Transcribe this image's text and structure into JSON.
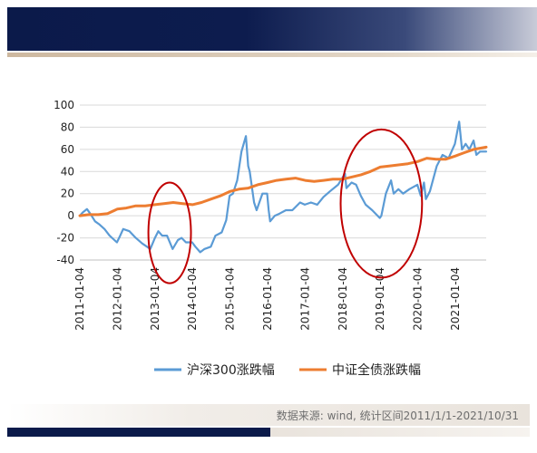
{
  "chart_data": {
    "type": "line",
    "title": "",
    "xlabel": "",
    "ylabel": "",
    "ylim": [
      -40,
      100
    ],
    "yticks": [
      100,
      80,
      60,
      40,
      20,
      0,
      -20,
      -40
    ],
    "xticks": [
      "2011-01-04",
      "2012-01-04",
      "2013-01-04",
      "2014-01-04",
      "2015-01-04",
      "2016-01-04",
      "2017-01-04",
      "2018-01-04",
      "2019-01-04",
      "2020-01-04",
      "2021-01-04"
    ],
    "x_start": "2011-01-04",
    "x_end": "2021-10-31",
    "grid": true,
    "legend": "bottom",
    "series": [
      {
        "name": "沪深300涨跌幅",
        "color": "#5b9bd5",
        "points": [
          [
            "2011-01-04",
            0
          ],
          [
            "2011-02-01",
            3
          ],
          [
            "2011-03-15",
            6
          ],
          [
            "2011-04-15",
            2
          ],
          [
            "2011-06-01",
            -5
          ],
          [
            "2011-07-15",
            -8
          ],
          [
            "2011-09-01",
            -12
          ],
          [
            "2011-10-20",
            -18
          ],
          [
            "2011-12-31",
            -24
          ],
          [
            "2012-02-01",
            -18
          ],
          [
            "2012-03-01",
            -12
          ],
          [
            "2012-05-01",
            -14
          ],
          [
            "2012-07-01",
            -20
          ],
          [
            "2012-09-01",
            -25
          ],
          [
            "2012-11-20",
            -30
          ],
          [
            "2013-01-04",
            -20
          ],
          [
            "2013-02-05",
            -14
          ],
          [
            "2013-03-15",
            -18
          ],
          [
            "2013-05-01",
            -18
          ],
          [
            "2013-06-25",
            -30
          ],
          [
            "2013-08-15",
            -22
          ],
          [
            "2013-09-20",
            -20
          ],
          [
            "2013-11-01",
            -24
          ],
          [
            "2013-12-31",
            -24
          ],
          [
            "2014-02-01",
            -28
          ],
          [
            "2014-03-20",
            -33
          ],
          [
            "2014-05-01",
            -30
          ],
          [
            "2014-07-01",
            -28
          ],
          [
            "2014-08-15",
            -18
          ],
          [
            "2014-10-15",
            -15
          ],
          [
            "2014-11-28",
            -4
          ],
          [
            "2014-12-31",
            18
          ],
          [
            "2015-02-01",
            20
          ],
          [
            "2015-03-15",
            32
          ],
          [
            "2015-04-25",
            58
          ],
          [
            "2015-06-08",
            72
          ],
          [
            "2015-06-30",
            45
          ],
          [
            "2015-07-15",
            40
          ],
          [
            "2015-08-26",
            12
          ],
          [
            "2015-09-20",
            5
          ],
          [
            "2015-11-15",
            20
          ],
          [
            "2015-12-31",
            20
          ],
          [
            "2016-01-15",
            5
          ],
          [
            "2016-01-29",
            -5
          ],
          [
            "2016-03-15",
            0
          ],
          [
            "2016-05-01",
            2
          ],
          [
            "2016-07-01",
            5
          ],
          [
            "2016-09-01",
            5
          ],
          [
            "2016-11-15",
            12
          ],
          [
            "2016-12-31",
            10
          ],
          [
            "2017-03-01",
            12
          ],
          [
            "2017-05-01",
            10
          ],
          [
            "2017-07-01",
            17
          ],
          [
            "2017-09-01",
            22
          ],
          [
            "2017-11-20",
            28
          ],
          [
            "2018-01-26",
            38
          ],
          [
            "2018-02-09",
            25
          ],
          [
            "2018-04-01",
            30
          ],
          [
            "2018-05-15",
            28
          ],
          [
            "2018-06-30",
            18
          ],
          [
            "2018-08-15",
            10
          ],
          [
            "2018-10-18",
            5
          ],
          [
            "2018-12-31",
            -2
          ],
          [
            "2019-01-15",
            0
          ],
          [
            "2019-02-28",
            20
          ],
          [
            "2019-04-19",
            32
          ],
          [
            "2019-05-15",
            20
          ],
          [
            "2019-06-30",
            24
          ],
          [
            "2019-08-15",
            20
          ],
          [
            "2019-10-15",
            24
          ],
          [
            "2019-12-31",
            28
          ],
          [
            "2020-02-03",
            18
          ],
          [
            "2020-03-05",
            30
          ],
          [
            "2020-03-23",
            15
          ],
          [
            "2020-05-01",
            22
          ],
          [
            "2020-07-07",
            45
          ],
          [
            "2020-09-01",
            55
          ],
          [
            "2020-10-30",
            52
          ],
          [
            "2020-12-31",
            65
          ],
          [
            "2021-02-10",
            85
          ],
          [
            "2021-03-09",
            60
          ],
          [
            "2021-04-15",
            65
          ],
          [
            "2021-05-20",
            60
          ],
          [
            "2021-06-30",
            68
          ],
          [
            "2021-07-28",
            55
          ],
          [
            "2021-09-01",
            58
          ],
          [
            "2021-10-31",
            58
          ]
        ]
      },
      {
        "name": "中证全债涨跌幅",
        "color": "#ed7d31",
        "points": [
          [
            "2011-01-04",
            0
          ],
          [
            "2011-04-01",
            1
          ],
          [
            "2011-07-01",
            1
          ],
          [
            "2011-10-01",
            2
          ],
          [
            "2012-01-04",
            6
          ],
          [
            "2012-04-01",
            7
          ],
          [
            "2012-07-01",
            9
          ],
          [
            "2012-10-01",
            9
          ],
          [
            "2013-01-04",
            10
          ],
          [
            "2013-04-01",
            11
          ],
          [
            "2013-07-01",
            12
          ],
          [
            "2013-10-01",
            11
          ],
          [
            "2014-01-04",
            10
          ],
          [
            "2014-04-01",
            12
          ],
          [
            "2014-07-01",
            15
          ],
          [
            "2014-10-01",
            18
          ],
          [
            "2015-01-04",
            22
          ],
          [
            "2015-04-01",
            24
          ],
          [
            "2015-07-01",
            25
          ],
          [
            "2015-10-01",
            28
          ],
          [
            "2016-01-04",
            30
          ],
          [
            "2016-04-01",
            32
          ],
          [
            "2016-07-01",
            33
          ],
          [
            "2016-10-01",
            34
          ],
          [
            "2017-01-04",
            32
          ],
          [
            "2017-04-01",
            31
          ],
          [
            "2017-07-01",
            32
          ],
          [
            "2017-10-01",
            33
          ],
          [
            "2018-01-04",
            33
          ],
          [
            "2018-04-01",
            35
          ],
          [
            "2018-07-01",
            37
          ],
          [
            "2018-10-01",
            40
          ],
          [
            "2019-01-04",
            44
          ],
          [
            "2019-04-01",
            45
          ],
          [
            "2019-07-01",
            46
          ],
          [
            "2019-10-01",
            47
          ],
          [
            "2020-01-04",
            49
          ],
          [
            "2020-04-01",
            52
          ],
          [
            "2020-07-01",
            51
          ],
          [
            "2020-10-01",
            51
          ],
          [
            "2021-01-04",
            54
          ],
          [
            "2021-04-01",
            57
          ],
          [
            "2021-07-01",
            60
          ],
          [
            "2021-10-31",
            62
          ]
        ]
      }
    ],
    "annotations": [
      {
        "type": "ellipse",
        "color": "#c00000",
        "x_from": "2012-11-01",
        "x_to": "2013-12-20",
        "y_from": -61,
        "y_to": 30
      },
      {
        "type": "ellipse",
        "color": "#c00000",
        "x_from": "2017-12-15",
        "x_to": "2020-02-15",
        "y_from": -56,
        "y_to": 78
      }
    ]
  },
  "footer": {
    "source": "数据来源: wind, 统计区间2011/1/1-2021/10/31"
  }
}
